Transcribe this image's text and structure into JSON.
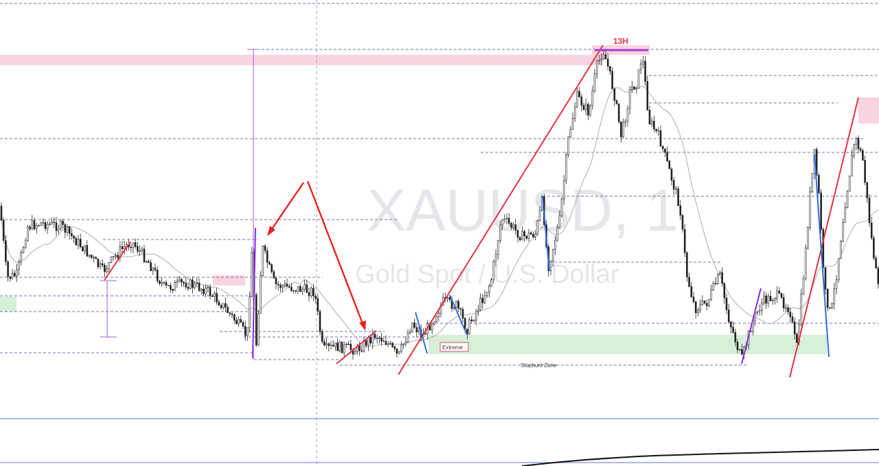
{
  "watermark": {
    "symbol": "XAUUSD, 1",
    "description": "Gold Spot / U.S. Dollar"
  },
  "annotations": {
    "timeframe_label": "13H",
    "extreme_label": "Extreme",
    "stophunt_label": "Stophunt Zone"
  },
  "colors": {
    "background": "#ffffff",
    "candle": "#222222",
    "moving_average": "#b3b3b3",
    "trend_line": "#e8313f",
    "arrow": "#e82020",
    "impulse_blue": "#2f6ee0",
    "impulse_purple": "#8a2be2",
    "supply_zone": "#f9d3df",
    "demand_zone": "#d6efd6",
    "level_line": "#3f3fb0",
    "indicator_line": "#8aa6f0",
    "measure_tool": "#9a5fd0"
  },
  "chart_data": {
    "type": "candlestick",
    "symbol": "XAUUSD",
    "timeframe": "1",
    "title": "XAUUSD, 1",
    "subtitle": "Gold Spot / U.S. Dollar",
    "axes_visible": false,
    "grid": false,
    "price_scale_note": "no price axis is shown; values are read in relative units (0 = lowest low, 100 = highest high)",
    "segments": [
      {
        "index": 1,
        "description": "consolidation on the left",
        "approx_range": [
          40,
          60
        ]
      },
      {
        "index": 2,
        "description": "spike up then sharp drop",
        "approx_range": [
          5,
          58
        ]
      },
      {
        "index": 3,
        "description": "ranging base",
        "approx_range": [
          2,
          16
        ]
      },
      {
        "index": 4,
        "description": "impulse rally to the high",
        "approx_range": [
          10,
          100
        ]
      },
      {
        "index": 5,
        "description": "decline after the 13H high",
        "approx_range": [
          10,
          95
        ]
      },
      {
        "index": 6,
        "description": "spike into the stophunt zone, then rally",
        "approx_range": [
          0,
          80
        ]
      }
    ],
    "moving_average": {
      "name": "",
      "color": "#b3b3b3"
    },
    "zones": [
      {
        "kind": "supply",
        "color": "#f9d3df",
        "label": ""
      },
      {
        "kind": "demand",
        "color": "#d6efd6",
        "label": "Extreme"
      },
      {
        "kind": "stophunt",
        "label": "Stophunt Zone"
      }
    ],
    "annotations": [
      "13H",
      "Extreme",
      "Stophunt Zone"
    ]
  }
}
